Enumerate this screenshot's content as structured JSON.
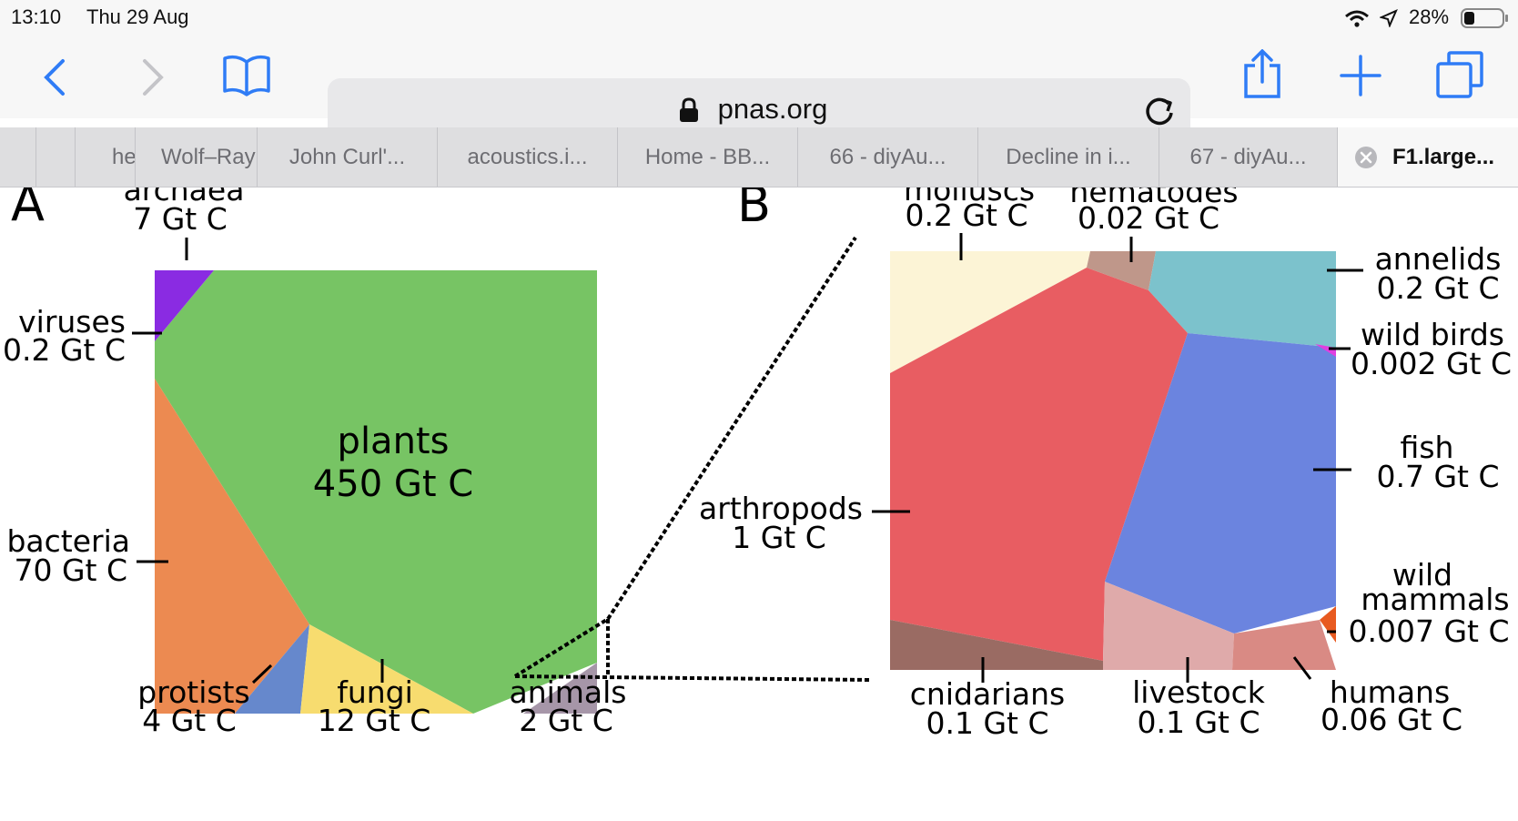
{
  "status_bar": {
    "time": "13:10",
    "date": "Thu 29 Aug",
    "battery": "28%"
  },
  "toolbar": {
    "url": "pnas.org"
  },
  "tabs": [
    {
      "label": ""
    },
    {
      "label": ""
    },
    {
      "label": "he"
    },
    {
      "label": "Wolf–Ray"
    },
    {
      "label": "John Curl'..."
    },
    {
      "label": "acoustics.i..."
    },
    {
      "label": "Home - BB..."
    },
    {
      "label": "66 - diyAu..."
    },
    {
      "label": "Decline in i..."
    },
    {
      "label": "67 - diyAu..."
    },
    {
      "label": "F1.large...",
      "active": true
    }
  ],
  "figure": {
    "panel_a": "A",
    "panel_b": "B",
    "a_labels": {
      "archaea": [
        "archaea",
        "7 Gt C"
      ],
      "viruses": [
        "viruses",
        "0.2 Gt C"
      ],
      "bacteria": [
        "bacteria",
        "70 Gt C"
      ],
      "plants": [
        "plants",
        "450 Gt C"
      ],
      "protists": [
        "protists",
        "4 Gt C"
      ],
      "fungi": [
        "fungi",
        "12 Gt C"
      ],
      "animals": [
        "animals",
        "2 Gt C"
      ]
    },
    "b_labels": {
      "molluscs": [
        "molluscs",
        "0.2 Gt C"
      ],
      "nematodes": [
        "nematodes",
        "0.02 Gt C"
      ],
      "annelids": [
        "annelids",
        "0.2 Gt C"
      ],
      "wild_birds": [
        "wild birds",
        "0.002 Gt C"
      ],
      "fish": [
        "fish",
        "0.7 Gt C"
      ],
      "arthropods": [
        "arthropods",
        "1 Gt C"
      ],
      "wild_mammals": [
        "wild",
        "mammals",
        "0.007 Gt C"
      ],
      "cnidarians": [
        "cnidarians",
        "0.1 Gt C"
      ],
      "livestock": [
        "livestock",
        "0.1 Gt C"
      ],
      "humans": [
        "humans",
        "0.06 Gt C"
      ]
    },
    "colors": {
      "plants": "#77c464",
      "bacteria": "#ec8a51",
      "archaea": "#8a2be2",
      "protists": "#6688cc",
      "fungi": "#f7dc6f",
      "animals": "#a696a8",
      "arthropods": "#e85d62",
      "fish": "#6b84df",
      "molluscs": "#fcf4d6",
      "nematodes": "#bf978a",
      "annelids": "#7cc2cc",
      "cnidarians": "#9a6b63",
      "livestock": "#dfaaaa",
      "humans": "#d98a84",
      "wild_birds": "#e040e0",
      "wild_mammals": "#e85a20"
    }
  }
}
